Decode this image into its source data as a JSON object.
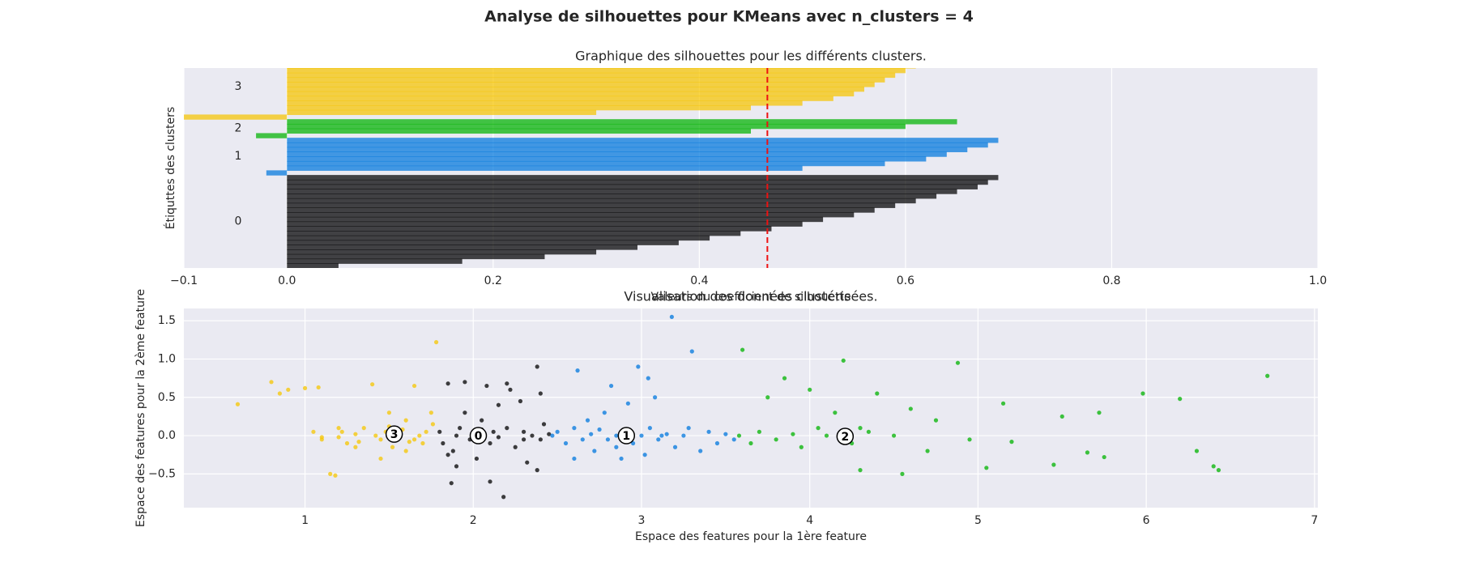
{
  "title": "Analyse de silhouettes pour KMeans avec n_clusters = 4",
  "chart_data": [
    {
      "type": "silhouette",
      "title": "Graphique des silhouettes pour les différents clusters.",
      "x_label": "Valeurs du coefficient de silhouette",
      "y_label": "Étiquttes des clusters",
      "xlim": [
        -0.1,
        1.0
      ],
      "xticks": [
        {
          "value": -0.1,
          "label": "−0.1"
        },
        {
          "value": 0,
          "label": "0.0"
        },
        0.2,
        0.4,
        0.6,
        0.8,
        {
          "value": 1.0,
          "label": "1.0"
        }
      ],
      "ylim": [
        0,
        43
      ],
      "grid": true,
      "average": 0.466,
      "average_color": "#ee1111",
      "series": [
        {
          "name": "0",
          "color": "#000000",
          "values": [
            0.05,
            0.17,
            0.25,
            0.3,
            0.34,
            0.38,
            0.41,
            0.44,
            0.47,
            0.5,
            0.52,
            0.55,
            0.57,
            0.59,
            0.61,
            0.63,
            0.65,
            0.67,
            0.68,
            0.69
          ]
        },
        {
          "name": "1",
          "color": "#0077dd",
          "values": [
            -0.02,
            0.5,
            0.58,
            0.62,
            0.64,
            0.66,
            0.68,
            0.69
          ]
        },
        {
          "name": "2",
          "color": "#00b300",
          "values": [
            -0.03,
            0.45,
            0.6,
            0.65
          ]
        },
        {
          "name": "3",
          "color": "#f6c500",
          "values": [
            -0.1,
            0.3,
            0.45,
            0.5,
            0.53,
            0.55,
            0.56,
            0.57,
            0.58,
            0.59,
            0.6,
            0.61,
            0.62,
            0.63
          ]
        }
      ]
    },
    {
      "type": "scatter",
      "title": "Visualisation des données clustérisées.",
      "x_label": "Espace des features pour la 1ère feature",
      "y_label": "Espace des features pour la 2ème feature",
      "xlim": [
        0.28,
        7.02
      ],
      "xticks": [
        1,
        2,
        3,
        4,
        5,
        6,
        7
      ],
      "ylim": [
        -0.94,
        1.66
      ],
      "yticks": [
        {
          "value": -0.5,
          "label": "−0.5"
        },
        {
          "value": 0,
          "label": "0.0"
        },
        0.5,
        {
          "value": 1.0,
          "label": "1.0"
        },
        1.5
      ],
      "grid": true,
      "series": [
        {
          "color": "#000000",
          "x": [
            1.8,
            1.82,
            1.85,
            1.88,
            1.9,
            1.92,
            1.95,
            1.98,
            2.0,
            2.02,
            2.05,
            2.08,
            2.1,
            2.12,
            2.15,
            2.18,
            2.2,
            2.22,
            2.25,
            2.28,
            2.3,
            2.32,
            2.35,
            2.38,
            2.4,
            2.42,
            2.45,
            1.85,
            1.9,
            1.95,
            2.0,
            2.05,
            2.1,
            2.2,
            2.3,
            2.4,
            1.87,
            2.15,
            2.38,
            2.0
          ],
          "y": [
            0.05,
            -0.1,
            0.68,
            -0.2,
            0.0,
            0.1,
            0.7,
            -0.05,
            0.02,
            -0.3,
            0.08,
            0.65,
            -0.1,
            0.05,
            -0.02,
            -0.8,
            0.1,
            0.6,
            -0.15,
            0.45,
            0.05,
            -0.35,
            0.0,
            0.9,
            -0.05,
            0.15,
            0.02,
            -0.25,
            -0.4,
            0.3,
            -0.05,
            0.2,
            -0.6,
            0.68,
            -0.05,
            0.55,
            -0.62,
            0.4,
            -0.45,
            0.0
          ]
        },
        {
          "color": "#0077dd",
          "x": [
            2.47,
            2.5,
            2.55,
            2.6,
            2.62,
            2.65,
            2.7,
            2.72,
            2.75,
            2.8,
            2.82,
            2.85,
            2.88,
            2.9,
            2.92,
            2.95,
            2.98,
            3.0,
            3.02,
            3.05,
            3.08,
            3.1,
            3.15,
            3.18,
            3.2,
            3.25,
            3.3,
            3.35,
            3.4,
            3.45,
            3.5,
            3.55,
            2.6,
            2.78,
            2.92,
            3.04,
            3.28,
            2.68,
            2.85,
            3.12
          ],
          "y": [
            0.0,
            0.05,
            -0.1,
            0.1,
            0.85,
            -0.05,
            0.02,
            -0.2,
            0.08,
            -0.05,
            0.65,
            0.0,
            -0.3,
            0.05,
            0.42,
            -0.1,
            0.9,
            0.0,
            -0.25,
            0.1,
            0.5,
            -0.05,
            0.02,
            1.55,
            -0.15,
            0.0,
            1.1,
            -0.2,
            0.05,
            -0.1,
            0.02,
            -0.05,
            -0.3,
            0.3,
            -0.05,
            0.75,
            0.1,
            0.2,
            -0.15,
            0.0
          ]
        },
        {
          "color": "#00b300",
          "x": [
            3.58,
            3.6,
            3.65,
            3.7,
            3.75,
            3.8,
            3.85,
            3.9,
            3.95,
            4.0,
            4.05,
            4.1,
            4.15,
            4.2,
            4.25,
            4.3,
            4.35,
            4.4,
            4.5,
            4.55,
            4.6,
            4.7,
            4.75,
            4.88,
            4.95,
            5.05,
            5.15,
            5.2,
            5.45,
            5.5,
            5.65,
            5.72,
            5.75,
            5.98,
            6.2,
            6.3,
            6.4,
            6.43,
            6.72,
            4.3
          ],
          "y": [
            0.0,
            1.12,
            -0.1,
            0.05,
            0.5,
            -0.05,
            0.75,
            0.02,
            -0.15,
            0.6,
            0.1,
            0.0,
            0.3,
            0.98,
            -0.1,
            -0.45,
            0.05,
            0.55,
            0.0,
            -0.5,
            0.35,
            -0.2,
            0.2,
            0.95,
            -0.05,
            -0.42,
            0.42,
            -0.08,
            -0.38,
            0.25,
            -0.22,
            0.3,
            -0.28,
            0.55,
            0.48,
            -0.2,
            -0.4,
            -0.45,
            0.78,
            0.1
          ]
        },
        {
          "color": "#f6c500",
          "x": [
            0.6,
            0.8,
            0.85,
            0.9,
            1.0,
            1.05,
            1.08,
            1.1,
            1.15,
            1.18,
            1.2,
            1.22,
            1.25,
            1.3,
            1.32,
            1.35,
            1.4,
            1.42,
            1.45,
            1.48,
            1.5,
            1.52,
            1.55,
            1.58,
            1.6,
            1.62,
            1.65,
            1.68,
            1.7,
            1.72,
            1.75,
            1.78,
            1.45,
            1.6,
            1.76,
            1.1,
            1.2,
            1.5,
            1.65,
            1.3
          ],
          "y": [
            0.41,
            0.7,
            0.55,
            0.6,
            0.62,
            0.05,
            0.63,
            -0.05,
            -0.5,
            -0.52,
            -0.02,
            0.05,
            -0.1,
            0.02,
            -0.08,
            0.1,
            0.67,
            0.0,
            -0.05,
            0.05,
            0.12,
            -0.15,
            -0.03,
            0.08,
            0.2,
            -0.08,
            0.65,
            0.0,
            -0.1,
            0.05,
            0.3,
            1.22,
            -0.3,
            -0.2,
            0.15,
            -0.02,
            0.1,
            0.3,
            -0.05,
            -0.15
          ]
        }
      ],
      "centers": {
        "x": [
          2.03,
          2.91,
          4.21,
          1.53
        ],
        "y": [
          0.0,
          0.0,
          -0.01,
          0.02
        ],
        "labels": [
          "0",
          "1",
          "2",
          "3"
        ]
      }
    }
  ]
}
